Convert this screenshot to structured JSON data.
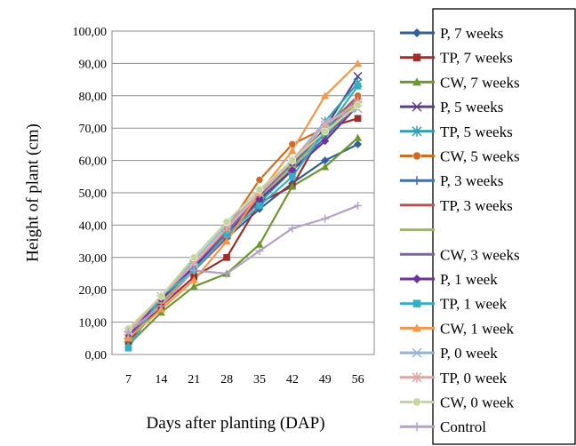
{
  "chart_data": {
    "type": "line",
    "xlabel": "Days after planting (DAP)",
    "ylabel": "Height of plant (cm)",
    "x": [
      "7",
      "14",
      "21",
      "28",
      "35",
      "42",
      "49",
      "56"
    ],
    "ylim": [
      0,
      100
    ],
    "yticks": [
      "0,00",
      "10,00",
      "20,00",
      "30,00",
      "40,00",
      "50,00",
      "60,00",
      "70,00",
      "80,00",
      "90,00",
      "100,00"
    ],
    "grid": "horizontal",
    "legend_position": "right",
    "series": [
      {
        "name": "P, 7 weeks",
        "color": "#2e5f9e",
        "marker": "diamond",
        "values": [
          4,
          16,
          26,
          36,
          45,
          53,
          60,
          65
        ]
      },
      {
        "name": "TP, 7 weeks",
        "color": "#a52a2a",
        "marker": "square",
        "values": [
          4,
          15,
          24,
          30,
          47,
          52,
          70,
          73
        ]
      },
      {
        "name": "CW, 7 weeks",
        "color": "#6b9a2c",
        "marker": "triangle",
        "values": [
          3,
          13,
          21,
          25,
          34,
          52,
          58,
          67
        ]
      },
      {
        "name": "P, 5 weeks",
        "color": "#5b3f86",
        "marker": "x",
        "values": [
          6,
          17,
          28,
          37,
          48,
          58,
          70,
          86
        ]
      },
      {
        "name": "TP, 5 weeks",
        "color": "#2fa0b0",
        "marker": "star",
        "values": [
          5,
          17,
          27,
          38,
          47,
          57,
          72,
          84
        ]
      },
      {
        "name": "CW, 5 weeks",
        "color": "#d2691e",
        "marker": "circle",
        "values": [
          6,
          17,
          27,
          39,
          54,
          65,
          70,
          80
        ]
      },
      {
        "name": "P, 3 weeks",
        "color": "#3d6fb6",
        "marker": "plus",
        "values": [
          5,
          17,
          27,
          37,
          48,
          57,
          67,
          78
        ]
      },
      {
        "name": "TP, 3 weeks",
        "color": "#c0504d",
        "marker": "dash",
        "values": [
          5,
          16,
          26,
          36,
          48,
          58,
          68,
          79
        ]
      },
      {
        "name": "",
        "color": "#9bbb59",
        "marker": "dash",
        "values": [
          5,
          16,
          27,
          37,
          48,
          58,
          68,
          78
        ]
      },
      {
        "name": "CW, 3 weeks",
        "color": "#8064a2",
        "marker": "none",
        "values": [
          5,
          17,
          27,
          38,
          49,
          59,
          69,
          80
        ]
      },
      {
        "name": "P, 1 week",
        "color": "#7030a0",
        "marker": "diamond",
        "values": [
          6,
          17,
          27,
          37,
          48,
          57,
          66,
          77
        ]
      },
      {
        "name": "TP, 1 week",
        "color": "#31b0c6",
        "marker": "square",
        "values": [
          2,
          18,
          26,
          37,
          46,
          55,
          69,
          83
        ]
      },
      {
        "name": "CW, 1 week",
        "color": "#f79646",
        "marker": "triangle",
        "values": [
          5,
          14,
          23,
          35,
          50,
          63,
          80,
          90
        ]
      },
      {
        "name": "P, 0 week",
        "color": "#95b3d7",
        "marker": "x",
        "values": [
          7,
          18,
          29,
          40,
          50,
          60,
          72,
          76
        ]
      },
      {
        "name": "TP, 0 week",
        "color": "#e6a5a2",
        "marker": "star",
        "values": [
          7,
          18,
          28,
          39,
          50,
          60,
          71,
          78
        ]
      },
      {
        "name": "CW, 0 week",
        "color": "#c3d69b",
        "marker": "circle",
        "values": [
          8,
          18,
          30,
          41,
          51,
          60,
          69,
          77
        ]
      },
      {
        "name": "Control",
        "color": "#b3a2c7",
        "marker": "plus",
        "values": [
          7,
          15,
          26,
          25,
          32,
          39,
          42,
          46
        ]
      }
    ]
  }
}
